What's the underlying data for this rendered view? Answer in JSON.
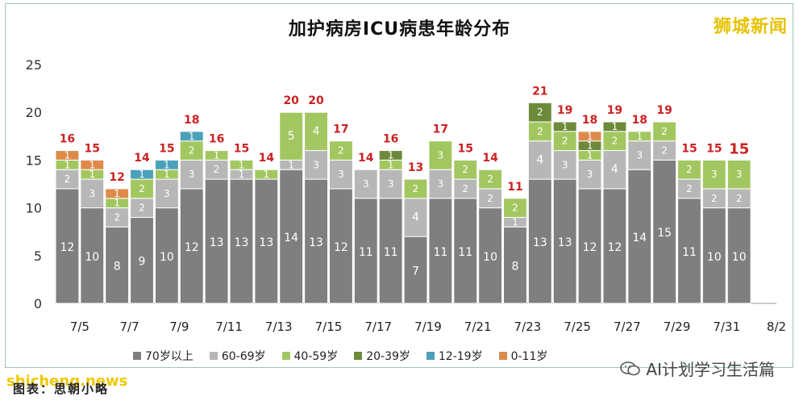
{
  "title": "加护病房ICU病患年龄分布",
  "brand": "狮城新闻",
  "watermark": "shicheng.news",
  "caption": "图表：思朝小略",
  "account": "AI计划学习生活篇",
  "colors": {
    "70+": "#7f7f7f",
    "60-69": "#b7b7b7",
    "40-59": "#a3c760",
    "20-39": "#6c8a3a",
    "12-19": "#4aa0b8",
    "0-11": "#de8a4a",
    "total_label": "#cc2222"
  },
  "chart_data": {
    "type": "bar",
    "stacked": true,
    "title": "加护病房ICU病患年龄分布",
    "ylim": [
      0,
      25
    ],
    "yticks": [
      0,
      5,
      10,
      15,
      20,
      25
    ],
    "categories": [
      "7/5",
      "7/6",
      "7/7",
      "7/8",
      "7/9",
      "7/10",
      "7/11",
      "7/12",
      "7/13",
      "7/14",
      "7/15",
      "7/16",
      "7/17",
      "7/18",
      "7/19",
      "7/20",
      "7/21",
      "7/22",
      "7/23",
      "7/24",
      "7/25",
      "7/26",
      "7/27",
      "7/28",
      "7/29",
      "7/30",
      "7/31",
      "8/1",
      "8/2"
    ],
    "xtick_labels": [
      "7/5",
      "7/7",
      "7/9",
      "7/11",
      "7/13",
      "7/15",
      "7/17",
      "7/19",
      "7/21",
      "7/23",
      "7/25",
      "7/27",
      "7/29",
      "7/31",
      "8/2"
    ],
    "series": [
      {
        "name": "70岁以上",
        "values": [
          12,
          10,
          8,
          9,
          10,
          12,
          13,
          13,
          13,
          14,
          13,
          12,
          11,
          11,
          7,
          11,
          11,
          10,
          8,
          13,
          13,
          12,
          12,
          14,
          15,
          11,
          10,
          10,
          0
        ]
      },
      {
        "name": "60-69岁",
        "values": [
          2,
          3,
          2,
          2,
          3,
          3,
          2,
          1,
          0,
          1,
          3,
          3,
          3,
          3,
          4,
          3,
          2,
          2,
          1,
          4,
          3,
          3,
          4,
          3,
          2,
          2,
          2,
          2,
          0
        ]
      },
      {
        "name": "40-59岁",
        "values": [
          1,
          1,
          1,
          2,
          1,
          2,
          1,
          1,
          1,
          5,
          4,
          2,
          0,
          1,
          2,
          3,
          2,
          2,
          2,
          2,
          2,
          1,
          2,
          1,
          2,
          2,
          3,
          3,
          0
        ]
      },
      {
        "name": "20-39岁",
        "values": [
          0,
          0,
          0,
          0,
          0,
          0,
          0,
          0,
          0,
          0,
          0,
          0,
          0,
          1,
          0,
          0,
          0,
          0,
          0,
          2,
          1,
          1,
          1,
          0,
          0,
          0,
          0,
          0,
          0
        ]
      },
      {
        "name": "12-19岁",
        "values": [
          0,
          0,
          0,
          1,
          1,
          1,
          0,
          0,
          0,
          0,
          0,
          0,
          0,
          0,
          0,
          0,
          0,
          0,
          0,
          0,
          0,
          0,
          0,
          0,
          0,
          0,
          0,
          0,
          0
        ]
      },
      {
        "name": "0-11岁",
        "values": [
          1,
          1,
          1,
          0,
          0,
          0,
          0,
          0,
          0,
          0,
          0,
          0,
          0,
          0,
          0,
          0,
          0,
          0,
          0,
          0,
          0,
          1,
          0,
          0,
          0,
          0,
          0,
          0,
          0
        ]
      }
    ],
    "totals": [
      16,
      15,
      12,
      14,
      15,
      18,
      16,
      15,
      14,
      20,
      20,
      17,
      14,
      16,
      13,
      17,
      15,
      14,
      11,
      21,
      19,
      18,
      19,
      18,
      19,
      15,
      15,
      15,
      null
    ],
    "legend_placement": "bottom",
    "grid": false
  },
  "legend": [
    "70岁以上",
    "60-69岁",
    "40-59岁",
    "20-39岁",
    "12-19岁",
    "0-11岁"
  ]
}
